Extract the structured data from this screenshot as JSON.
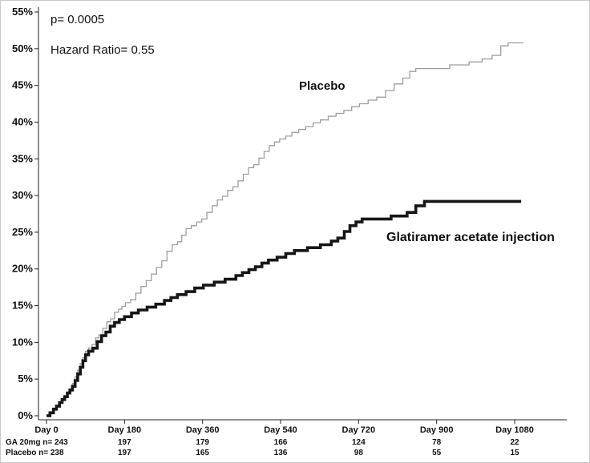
{
  "chart_data": {
    "type": "line",
    "subtype": "kaplan-meier-step",
    "title": "",
    "xlabel": "",
    "ylabel": "",
    "grid": false,
    "legend_position": "inline-labels",
    "annotations": {
      "p_value": "p= 0.0005",
      "hazard_ratio": "Hazard Ratio= 0.55"
    },
    "ylim": [
      0,
      55
    ],
    "xlim": [
      0,
      1140
    ],
    "y_ticks": {
      "values": [
        0,
        5,
        10,
        15,
        20,
        25,
        30,
        35,
        40,
        45,
        50,
        55
      ],
      "labels": [
        "0%",
        "5%",
        "10%",
        "15%",
        "20%",
        "25%",
        "30%",
        "35%",
        "40%",
        "45%",
        "50%",
        "55%"
      ]
    },
    "x_ticks": {
      "days": [
        0,
        180,
        360,
        540,
        720,
        900,
        1080
      ],
      "labels": [
        "Day 0",
        "Day 180",
        "Day 360",
        "Day 540",
        "Day 720",
        "Day 900",
        "Day 1080"
      ]
    },
    "series": [
      {
        "name": "Placebo",
        "color": "#9e9e9e",
        "stroke_width": 1.3,
        "points": [
          [
            0,
            0
          ],
          [
            8,
            0.4
          ],
          [
            16,
            0.9
          ],
          [
            23,
            1.3
          ],
          [
            30,
            1.8
          ],
          [
            36,
            2.2
          ],
          [
            42,
            2.7
          ],
          [
            48,
            3.1
          ],
          [
            54,
            3.6
          ],
          [
            60,
            4.4
          ],
          [
            66,
            5.3
          ],
          [
            72,
            6.2
          ],
          [
            78,
            7.1
          ],
          [
            84,
            7.9
          ],
          [
            90,
            8.8
          ],
          [
            97,
            9.2
          ],
          [
            105,
            9.7
          ],
          [
            113,
            10.6
          ],
          [
            121,
            11.0
          ],
          [
            130,
            11.9
          ],
          [
            139,
            12.8
          ],
          [
            148,
            13.2
          ],
          [
            157,
            14.1
          ],
          [
            166,
            14.5
          ],
          [
            174,
            14.9
          ],
          [
            182,
            15.4
          ],
          [
            194,
            15.8
          ],
          [
            206,
            16.7
          ],
          [
            218,
            17.6
          ],
          [
            230,
            18.4
          ],
          [
            242,
            19.3
          ],
          [
            254,
            20.2
          ],
          [
            266,
            21.1
          ],
          [
            278,
            22.4
          ],
          [
            290,
            23.3
          ],
          [
            302,
            23.7
          ],
          [
            312,
            24.6
          ],
          [
            322,
            25.5
          ],
          [
            334,
            25.9
          ],
          [
            346,
            26.4
          ],
          [
            358,
            26.8
          ],
          [
            370,
            27.7
          ],
          [
            382,
            28.6
          ],
          [
            394,
            29.4
          ],
          [
            406,
            29.9
          ],
          [
            418,
            30.7
          ],
          [
            430,
            31.2
          ],
          [
            442,
            32.0
          ],
          [
            454,
            32.9
          ],
          [
            466,
            33.8
          ],
          [
            478,
            34.2
          ],
          [
            490,
            35.1
          ],
          [
            502,
            36.0
          ],
          [
            514,
            36.8
          ],
          [
            526,
            37.3
          ],
          [
            538,
            37.7
          ],
          [
            552,
            38.1
          ],
          [
            566,
            38.6
          ],
          [
            582,
            39.0
          ],
          [
            598,
            39.4
          ],
          [
            615,
            39.9
          ],
          [
            632,
            40.3
          ],
          [
            650,
            40.8
          ],
          [
            668,
            41.2
          ],
          [
            686,
            41.6
          ],
          [
            704,
            42.1
          ],
          [
            722,
            42.5
          ],
          [
            742,
            43.0
          ],
          [
            762,
            43.4
          ],
          [
            782,
            44.3
          ],
          [
            802,
            45.2
          ],
          [
            822,
            46.0
          ],
          [
            838,
            46.9
          ],
          [
            852,
            47.3
          ],
          [
            930,
            47.8
          ],
          [
            975,
            48.2
          ],
          [
            1005,
            48.6
          ],
          [
            1028,
            49.1
          ],
          [
            1048,
            50.4
          ],
          [
            1065,
            50.8
          ],
          [
            1100,
            50.8
          ]
        ]
      },
      {
        "name": "Glatiramer acetate injection",
        "color": "#161616",
        "stroke_width": 3.6,
        "points": [
          [
            0,
            0
          ],
          [
            8,
            0.4
          ],
          [
            16,
            0.9
          ],
          [
            23,
            1.3
          ],
          [
            30,
            1.8
          ],
          [
            36,
            2.2
          ],
          [
            42,
            2.6
          ],
          [
            48,
            3.1
          ],
          [
            54,
            3.5
          ],
          [
            60,
            4.0
          ],
          [
            66,
            4.8
          ],
          [
            72,
            5.7
          ],
          [
            78,
            6.6
          ],
          [
            84,
            7.5
          ],
          [
            90,
            8.3
          ],
          [
            97,
            8.8
          ],
          [
            107,
            9.2
          ],
          [
            117,
            10.1
          ],
          [
            127,
            10.9
          ],
          [
            137,
            11.4
          ],
          [
            147,
            12.2
          ],
          [
            157,
            12.7
          ],
          [
            168,
            13.1
          ],
          [
            180,
            13.5
          ],
          [
            196,
            14.0
          ],
          [
            212,
            14.4
          ],
          [
            232,
            14.8
          ],
          [
            252,
            15.2
          ],
          [
            272,
            15.7
          ],
          [
            287,
            16.1
          ],
          [
            302,
            16.5
          ],
          [
            322,
            16.9
          ],
          [
            342,
            17.4
          ],
          [
            362,
            17.8
          ],
          [
            387,
            18.2
          ],
          [
            412,
            18.6
          ],
          [
            437,
            19.1
          ],
          [
            452,
            19.5
          ],
          [
            467,
            19.9
          ],
          [
            482,
            20.3
          ],
          [
            497,
            20.8
          ],
          [
            512,
            21.2
          ],
          [
            532,
            21.6
          ],
          [
            552,
            22.1
          ],
          [
            572,
            22.5
          ],
          [
            602,
            22.9
          ],
          [
            632,
            23.3
          ],
          [
            657,
            23.8
          ],
          [
            672,
            24.2
          ],
          [
            687,
            25.1
          ],
          [
            700,
            25.9
          ],
          [
            714,
            26.4
          ],
          [
            728,
            26.8
          ],
          [
            795,
            27.2
          ],
          [
            832,
            27.7
          ],
          [
            852,
            28.6
          ],
          [
            872,
            29.2
          ],
          [
            1095,
            29.2
          ]
        ]
      }
    ],
    "at_risk": {
      "value_days": [
        180,
        360,
        540,
        720,
        900,
        1080
      ],
      "rows": [
        {
          "label": "GA 20mg n= 243",
          "values": [
            "197",
            "179",
            "166",
            "124",
            "78",
            "22"
          ]
        },
        {
          "label": "Placebo n= 238",
          "values": [
            "197",
            "165",
            "136",
            "98",
            "55",
            "15"
          ]
        }
      ]
    }
  }
}
